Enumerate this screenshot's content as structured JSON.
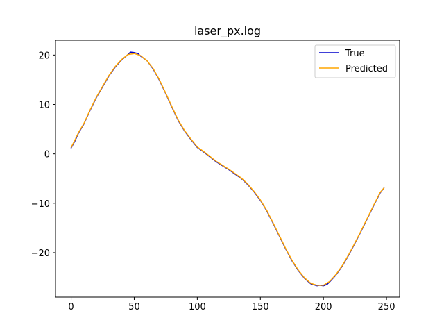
{
  "chart_data": {
    "type": "line",
    "title": "laser_px.log",
    "xlabel": "",
    "ylabel": "",
    "xlim": [
      -12.4,
      260.4
    ],
    "ylim": [
      -29.0,
      23.0
    ],
    "xticks": [
      0,
      50,
      100,
      150,
      200,
      250
    ],
    "yticks": [
      -20,
      -10,
      0,
      10,
      20
    ],
    "tick_labels": {
      "x": [
        "0",
        "50",
        "100",
        "150",
        "200",
        "250"
      ],
      "y": [
        "−20",
        "−10",
        "0",
        "10",
        "20"
      ]
    },
    "grid": false,
    "legend": {
      "placement": "top-right",
      "entries": [
        "True",
        "Predicted"
      ]
    },
    "colors": {
      "True": "#0000cc",
      "Predicted": "#ffa500"
    },
    "series": [
      {
        "name": "True",
        "x": [
          0,
          3,
          6,
          10,
          15,
          20,
          25,
          30,
          35,
          40,
          45,
          47,
          50,
          53,
          55,
          60,
          65,
          70,
          75,
          80,
          85,
          90,
          95,
          100,
          105,
          110,
          115,
          120,
          125,
          130,
          135,
          140,
          145,
          150,
          155,
          160,
          165,
          170,
          175,
          180,
          185,
          190,
          195,
          197,
          200,
          203,
          205,
          210,
          215,
          220,
          225,
          230,
          235,
          240,
          245,
          248
        ],
        "values": [
          1.2,
          2.6,
          4.3,
          6.0,
          8.8,
          11.4,
          13.6,
          15.8,
          17.6,
          19.0,
          20.1,
          20.6,
          20.5,
          20.3,
          19.8,
          18.9,
          17.2,
          14.9,
          12.2,
          9.4,
          6.7,
          4.6,
          2.9,
          1.3,
          0.4,
          -0.6,
          -1.6,
          -2.4,
          -3.2,
          -4.1,
          -5.0,
          -6.2,
          -7.7,
          -9.4,
          -11.5,
          -14.0,
          -16.6,
          -19.2,
          -21.6,
          -23.6,
          -25.2,
          -26.3,
          -26.7,
          -26.6,
          -26.7,
          -26.4,
          -25.9,
          -24.5,
          -22.7,
          -20.5,
          -18.1,
          -15.6,
          -13.0,
          -10.4,
          -7.9,
          -6.9
        ]
      },
      {
        "name": "Predicted",
        "x": [
          0,
          3,
          6,
          10,
          15,
          20,
          25,
          30,
          35,
          40,
          45,
          50,
          55,
          60,
          65,
          70,
          75,
          80,
          85,
          90,
          95,
          100,
          105,
          110,
          115,
          120,
          125,
          130,
          135,
          140,
          145,
          150,
          155,
          160,
          165,
          170,
          175,
          180,
          185,
          190,
          195,
          200,
          205,
          210,
          215,
          220,
          225,
          230,
          235,
          240,
          245,
          248
        ],
        "values": [
          1.3,
          2.8,
          4.4,
          6.1,
          8.9,
          11.5,
          13.7,
          15.9,
          17.7,
          19.1,
          20.1,
          20.3,
          19.9,
          18.9,
          17.3,
          15.0,
          12.3,
          9.5,
          6.8,
          4.7,
          3.0,
          1.4,
          0.5,
          -0.5,
          -1.5,
          -2.3,
          -3.1,
          -4.0,
          -4.9,
          -6.1,
          -7.6,
          -9.3,
          -11.4,
          -13.9,
          -16.5,
          -19.1,
          -21.5,
          -23.5,
          -25.1,
          -26.2,
          -26.6,
          -26.6,
          -25.8,
          -24.4,
          -22.6,
          -20.4,
          -18.0,
          -15.5,
          -12.9,
          -10.3,
          -7.8,
          -6.9
        ]
      }
    ]
  }
}
